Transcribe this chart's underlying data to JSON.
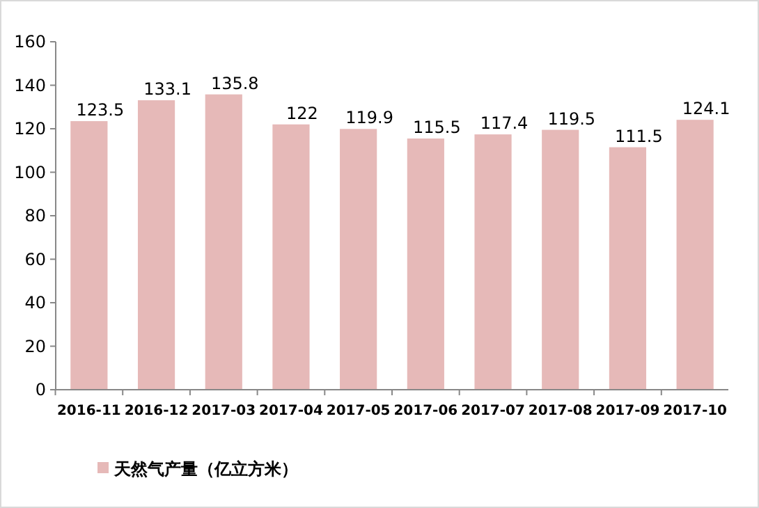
{
  "chart_data": {
    "type": "bar",
    "categories": [
      "2016-11",
      "2016-12",
      "2017-03",
      "2017-04",
      "2017-05",
      "2017-06",
      "2017-07",
      "2017-08",
      "2017-09",
      "2017-10"
    ],
    "series": [
      {
        "name": "天然气产量（亿立方米）",
        "color": "#e6b9b8",
        "values": [
          123.5,
          133.1,
          135.8,
          122,
          119.9,
          115.5,
          117.4,
          119.5,
          111.5,
          124.1
        ]
      }
    ],
    "ylim": [
      0,
      160
    ],
    "yticks": [
      0,
      20,
      40,
      60,
      80,
      100,
      120,
      140,
      160
    ],
    "data_labels": true,
    "grid": false,
    "legend": "bottom left"
  }
}
